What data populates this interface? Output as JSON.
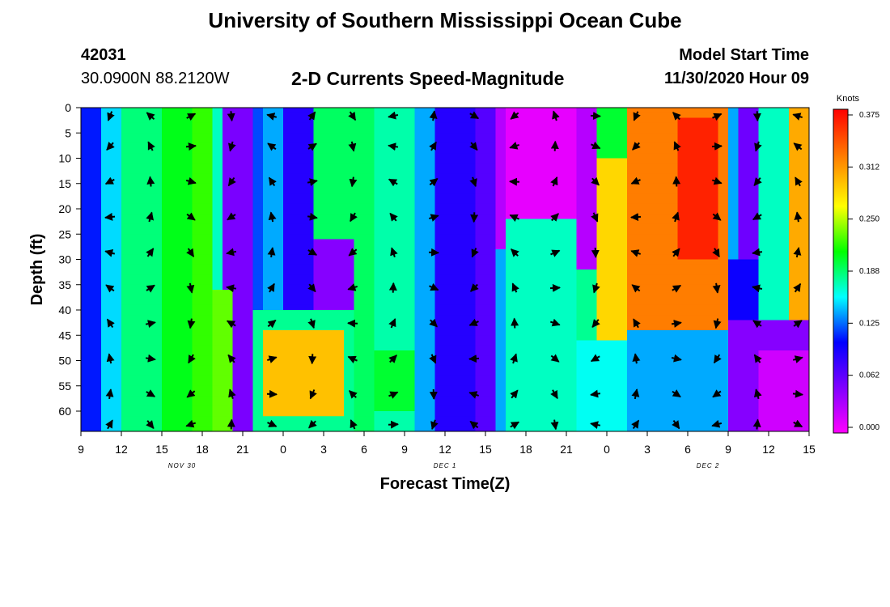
{
  "page": {
    "title_top": "University of Southern Mississippi Ocean Cube",
    "title_bottom": "University of Southern Mississippi Ocean Cube",
    "station_id": "42031",
    "station_coords": "30.0900N 88.2120W",
    "subtitle": "2-D Currents Speed-Magnitude",
    "model_start_label": "Model Start Time",
    "model_start_time": "11/30/2020 Hour 09"
  },
  "chart_data": {
    "type": "heatmap",
    "title": "2-D Currents Speed-Magnitude",
    "xlabel": "Forecast Time(Z)",
    "ylabel": "Depth (ft)",
    "x_hours_from_start": [
      0,
      3,
      6,
      9,
      12,
      15,
      18,
      21,
      24,
      27,
      30,
      33,
      36,
      39,
      42,
      45,
      48,
      51,
      54
    ],
    "x_tick_labels": [
      "9",
      "12",
      "15",
      "18",
      "21",
      "0",
      "3",
      "6",
      "9",
      "12",
      "15",
      "18",
      "21",
      "0",
      "3",
      "6",
      "9",
      "12",
      "15"
    ],
    "date_labels": [
      {
        "label": "NOV 30",
        "hour": 7.5
      },
      {
        "label": "DEC 1",
        "hour": 27
      },
      {
        "label": "DEC 2",
        "hour": 46.5
      }
    ],
    "y_ticks": [
      0,
      5,
      10,
      15,
      20,
      25,
      30,
      35,
      40,
      45,
      50,
      55,
      60
    ],
    "ylim": [
      0,
      64
    ],
    "y_inverted": true,
    "colorbar": {
      "unit": "Knots",
      "tick_labels": [
        "0.375",
        "0.312",
        "0.250",
        "0.188",
        "0.125",
        "0.062",
        "0.000"
      ],
      "range": [
        0,
        0.375
      ],
      "colors": [
        "#ff00ff",
        "#8000ff",
        "#0000ff",
        "#00ffff",
        "#00ff00",
        "#ffff00",
        "#ff8000",
        "#ff0000"
      ]
    },
    "grid": false,
    "legend": "right colorbar"
  }
}
